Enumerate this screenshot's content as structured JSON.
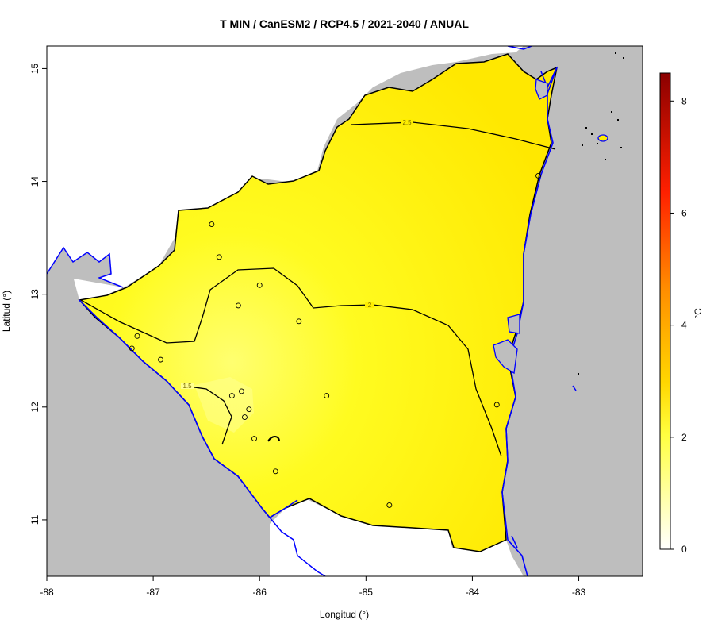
{
  "title": "T MIN / CanESM2 / RCP4.5 / 2021-2040 / ANUAL",
  "xlabel": "Longitud (°)",
  "ylabel": "Latitud (°)",
  "x_ticks": [
    "-88",
    "-87",
    "-86",
    "-85",
    "-84",
    "-83"
  ],
  "y_ticks": [
    "11",
    "12",
    "13",
    "14",
    "15"
  ],
  "colorbar": {
    "unit": "°C",
    "ticks": [
      "0",
      "2",
      "4",
      "6",
      "8"
    ],
    "range": [
      0,
      8.5
    ],
    "colors": [
      "#ffffff",
      "#ffff40",
      "#ffd700",
      "#ff8c00",
      "#ff2000",
      "#8b0000"
    ]
  },
  "contour_labels": [
    "2.5",
    "2",
    "1.5"
  ],
  "colors": {
    "land_fill": "#ffee00",
    "outside_fill": "#bebebe",
    "lakes_coast": "#0000ff",
    "border": "#000000"
  },
  "chart_data": {
    "type": "heatmap",
    "title": "T MIN / CanESM2 / RCP4.5 / 2021-2040 / ANUAL",
    "xlabel": "Longitud (°)",
    "ylabel": "Latitud (°)",
    "xlim": [
      -88,
      -82.4
    ],
    "ylim": [
      10.5,
      15.2
    ],
    "value_unit": "°C",
    "value_range": [
      0,
      8.5
    ],
    "contour_levels": [
      1.5,
      2,
      2.5
    ],
    "stations": [
      {
        "lon": -86.45,
        "lat": 13.62
      },
      {
        "lon": -86.38,
        "lat": 13.33
      },
      {
        "lon": -86.0,
        "lat": 13.08
      },
      {
        "lon": -86.2,
        "lat": 12.9
      },
      {
        "lon": -85.63,
        "lat": 12.76
      },
      {
        "lon": -87.15,
        "lat": 12.63
      },
      {
        "lon": -87.2,
        "lat": 12.52
      },
      {
        "lon": -86.93,
        "lat": 12.42
      },
      {
        "lon": -86.26,
        "lat": 12.1
      },
      {
        "lon": -86.17,
        "lat": 12.14
      },
      {
        "lon": -85.37,
        "lat": 12.1
      },
      {
        "lon": -86.1,
        "lat": 11.98
      },
      {
        "lon": -86.14,
        "lat": 11.91
      },
      {
        "lon": -86.05,
        "lat": 11.72
      },
      {
        "lon": -85.85,
        "lat": 11.43
      },
      {
        "lon": -84.78,
        "lat": 11.13
      },
      {
        "lon": -83.77,
        "lat": 12.02
      },
      {
        "lon": -83.38,
        "lat": 14.05
      }
    ]
  }
}
